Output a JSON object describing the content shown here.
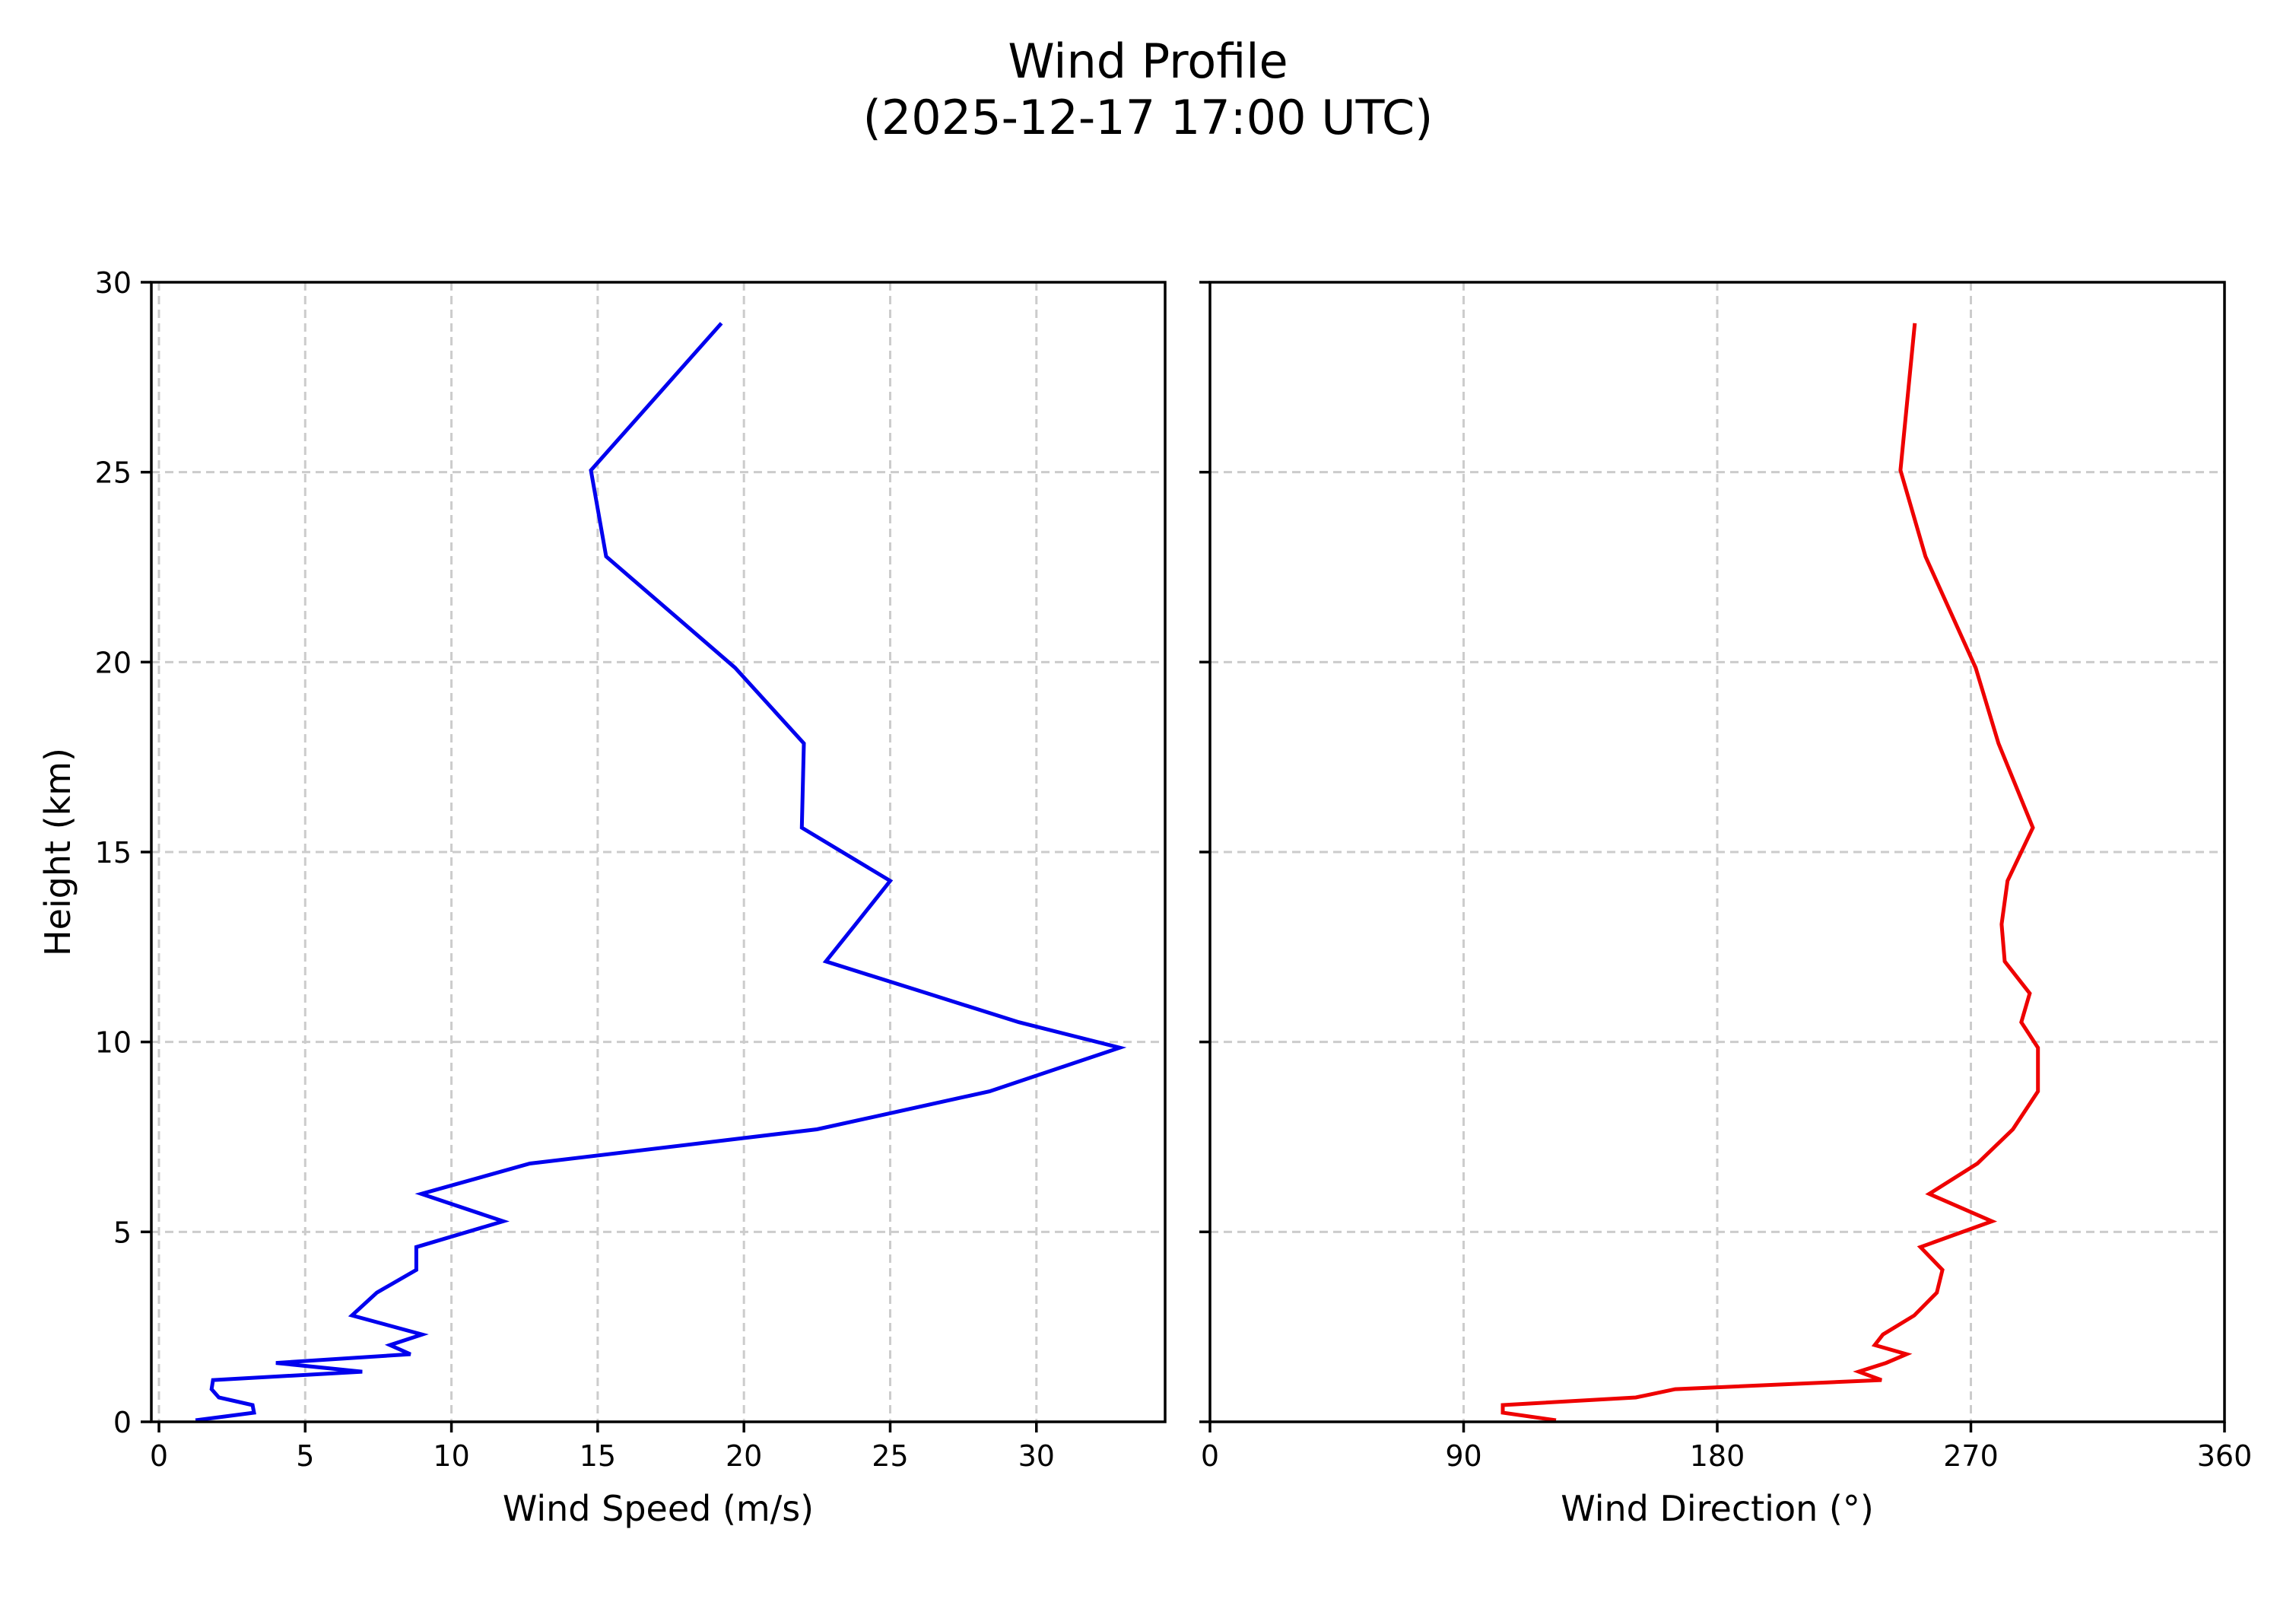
{
  "figure": {
    "title_line1": "Wind Profile",
    "title_line2": "(2025-12-17 17:00 UTC)"
  },
  "colors": {
    "speed_line": "#0000ee",
    "direction_line": "#ee0000",
    "grid": "#cccccc",
    "axes": "#000000"
  },
  "chart_data": [
    {
      "type": "line",
      "title": "Wind Profile (2025-12-17 17:00 UTC)",
      "xlabel": "Wind Speed (m/s)",
      "ylabel": "Height (km)",
      "xlim": [
        -0.26,
        34.4
      ],
      "ylim": [
        0,
        30
      ],
      "xticks": [
        0,
        5,
        10,
        15,
        20,
        25,
        30
      ],
      "yticks": [
        0,
        5,
        10,
        15,
        20,
        25,
        30
      ],
      "grid": true,
      "series": [
        {
          "name": "Wind Speed",
          "color": "#0000ee",
          "x": [
            1.25,
            3.25,
            3.2,
            2.05,
            1.8,
            1.85,
            6.95,
            4.0,
            8.6,
            7.9,
            9.0,
            6.6,
            7.45,
            8.8,
            8.8,
            11.77,
            8.97,
            12.68,
            22.5,
            28.4,
            32.85,
            29.4,
            26.27,
            22.8,
            23.82,
            25.0,
            21.98,
            22.05,
            19.7,
            15.29,
            14.77,
            19.23
          ],
          "y": [
            0.04,
            0.24,
            0.44,
            0.64,
            0.86,
            1.1,
            1.32,
            1.55,
            1.78,
            2.02,
            2.3,
            2.8,
            3.4,
            4.0,
            4.6,
            5.28,
            6.0,
            6.8,
            7.7,
            8.7,
            9.85,
            10.52,
            11.28,
            12.12,
            13.1,
            14.24,
            15.64,
            17.86,
            19.85,
            22.78,
            25.05,
            28.92
          ]
        }
      ]
    },
    {
      "type": "line",
      "xlabel": "Wind Direction (°)",
      "ylabel": "",
      "xlim": [
        0,
        360
      ],
      "ylim": [
        0,
        30
      ],
      "xticks": [
        0,
        90,
        180,
        270,
        360
      ],
      "yticks": [
        0,
        5,
        10,
        15,
        20,
        25,
        30
      ],
      "ytick_labels_visible": false,
      "grid": true,
      "series": [
        {
          "name": "Wind Direction",
          "color": "#ee0000",
          "x": [
            122.8,
            103.9,
            103.9,
            151.1,
            165.1,
            238.3,
            230.2,
            239.9,
            247.2,
            235.9,
            238.8,
            249.9,
            257.9,
            259.9,
            252.1,
            277.5,
            255.2,
            272.3,
            284.9,
            293.8,
            293.8,
            287.9,
            290.9,
            282.0,
            280.9,
            283.0,
            292.0,
            279.8,
            271.7,
            253.9,
            245.0,
            250.1
          ],
          "y": [
            0.04,
            0.24,
            0.44,
            0.64,
            0.86,
            1.1,
            1.32,
            1.55,
            1.78,
            2.02,
            2.3,
            2.8,
            3.4,
            4.0,
            4.6,
            5.28,
            6.0,
            6.8,
            7.7,
            8.7,
            9.85,
            10.52,
            11.28,
            12.12,
            13.1,
            14.24,
            15.64,
            17.86,
            19.85,
            22.78,
            25.05,
            28.92
          ]
        }
      ]
    }
  ]
}
